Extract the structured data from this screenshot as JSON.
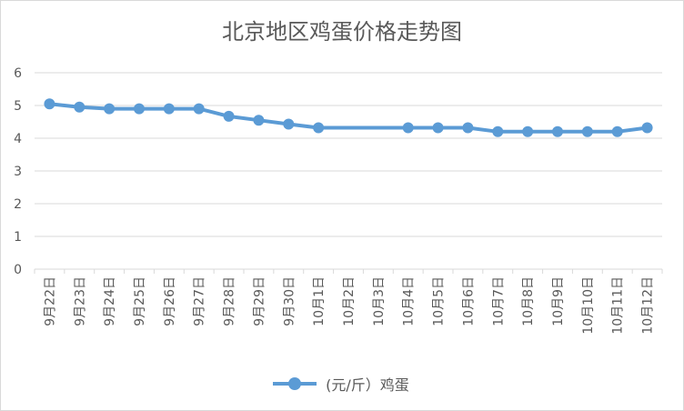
{
  "chart_data": {
    "type": "line",
    "title": "北京地区鸡蛋价格走势图",
    "categories": [
      "9月22日",
      "9月23日",
      "9月24日",
      "9月25日",
      "9月26日",
      "9月27日",
      "9月28日",
      "9月29日",
      "9月30日",
      "10月1日",
      "10月2日",
      "10月3日",
      "10月4日",
      "10月5日",
      "10月6日",
      "10月7日",
      "10月8日",
      "10月9日",
      "10月10日",
      "10月11日",
      "10月12日"
    ],
    "series": [
      {
        "name": "(元/斤）鸡蛋",
        "values": [
          5.05,
          4.95,
          4.9,
          4.9,
          4.9,
          4.9,
          4.67,
          4.55,
          4.43,
          4.32,
          null,
          null,
          4.32,
          4.32,
          4.32,
          4.2,
          4.2,
          4.2,
          4.2,
          4.2,
          4.32
        ]
      }
    ],
    "yticks": [
      "0",
      "1",
      "2",
      "3",
      "4",
      "5",
      "6"
    ],
    "ylim": [
      0,
      6
    ],
    "grid": true,
    "legend_position": "bottom",
    "series_color": "#5b9bd5"
  }
}
